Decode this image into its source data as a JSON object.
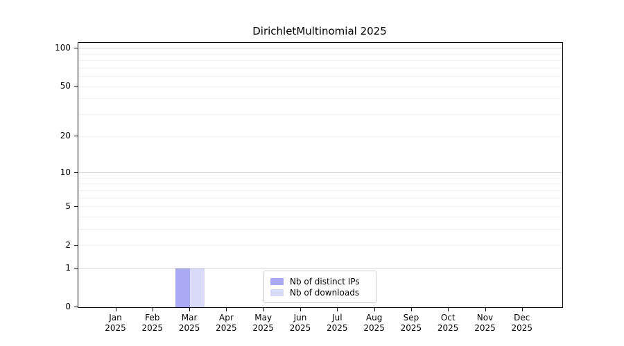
{
  "figure": {
    "background": "#ffffff"
  },
  "chart_data": {
    "type": "bar",
    "title": "DirichletMultinomial 2025",
    "xlabel": "",
    "ylabel": "",
    "x_categories": [
      "Jan 2025",
      "Feb 2025",
      "Mar 2025",
      "Apr 2025",
      "May 2025",
      "Jun 2025",
      "Jul 2025",
      "Aug 2025",
      "Sep 2025",
      "Oct 2025",
      "Nov 2025",
      "Dec 2025"
    ],
    "x_tick_months": [
      "Jan",
      "Feb",
      "Mar",
      "Apr",
      "May",
      "Jun",
      "Jul",
      "Aug",
      "Sep",
      "Oct",
      "Nov",
      "Dec"
    ],
    "x_tick_year": "2025",
    "y_scale": "log1p",
    "ylim": [
      0,
      110
    ],
    "y_ticks": [
      0,
      1,
      2,
      5,
      10,
      20,
      50,
      100
    ],
    "y_major_gridlines": [
      1,
      10,
      100
    ],
    "y_minor_gridlines": [
      2,
      3,
      4,
      5,
      6,
      7,
      8,
      9,
      20,
      30,
      40,
      50,
      60,
      70,
      80,
      90
    ],
    "grid": true,
    "legend_position": "lower center",
    "series": [
      {
        "name": "Nb of distinct IPs",
        "color": "#a9a9f4",
        "values": [
          0,
          0,
          1,
          0,
          0,
          0,
          0,
          0,
          0,
          0,
          0,
          0
        ]
      },
      {
        "name": "Nb of downloads",
        "color": "#d9d9f8",
        "values": [
          0,
          0,
          1,
          0,
          0,
          0,
          0,
          0,
          0,
          0,
          0,
          0
        ]
      }
    ]
  },
  "colors": {
    "major_grid": "#d4d4d4",
    "minor_grid": "#f0f0f0",
    "spine": "#000000",
    "text": "#000000",
    "legend_border": "#cccccc"
  }
}
